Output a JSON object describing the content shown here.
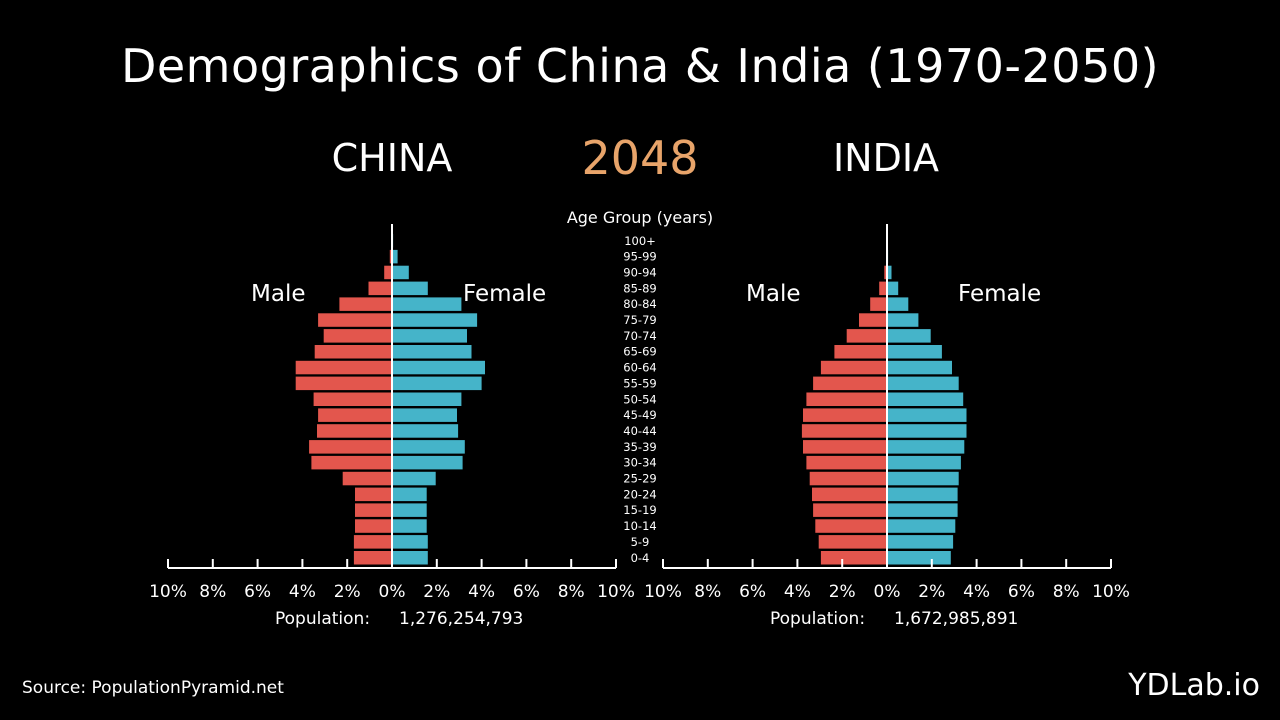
{
  "title": "Demographics of China & India (1970-2050)",
  "year": "2048",
  "age_axis_title": "Age Group (years)",
  "male_label": "Male",
  "female_label": "Female",
  "population_caption": "Population:",
  "source": "Source: PopulationPyramid.net",
  "brand": "YDLab.io",
  "colors": {
    "male": "#e3564d",
    "female": "#45b4c9",
    "year": "#e8a46a"
  },
  "chart_data": {
    "type": "bar",
    "orientation": "horizontal-pyramid",
    "age_groups": [
      "0-4",
      "5-9",
      "10-14",
      "15-19",
      "20-24",
      "25-29",
      "30-34",
      "35-39",
      "40-44",
      "45-49",
      "50-54",
      "55-59",
      "60-64",
      "65-69",
      "70-74",
      "75-79",
      "80-84",
      "85-89",
      "90-94",
      "95-99",
      "100+"
    ],
    "x_ticks": [
      "10%",
      "8%",
      "6%",
      "4%",
      "2%",
      "0%",
      "2%",
      "4%",
      "6%",
      "8%",
      "10%"
    ],
    "xlim": [
      -10,
      10
    ],
    "countries": [
      {
        "name": "CHINA",
        "population": "1,276,254,793",
        "male": [
          1.7,
          1.7,
          1.65,
          1.65,
          1.65,
          2.2,
          3.6,
          3.7,
          3.35,
          3.3,
          3.5,
          4.3,
          4.3,
          3.45,
          3.05,
          3.3,
          2.35,
          1.05,
          0.35,
          0.1,
          0.03
        ],
        "female": [
          1.6,
          1.6,
          1.55,
          1.55,
          1.55,
          1.95,
          3.15,
          3.25,
          2.95,
          2.9,
          3.1,
          4.0,
          4.15,
          3.55,
          3.35,
          3.8,
          3.1,
          1.6,
          0.75,
          0.25,
          0.05
        ]
      },
      {
        "name": "INDIA",
        "population": "1,672,985,891",
        "male": [
          2.95,
          3.05,
          3.2,
          3.3,
          3.35,
          3.45,
          3.6,
          3.75,
          3.8,
          3.75,
          3.6,
          3.3,
          2.95,
          2.35,
          1.8,
          1.25,
          0.75,
          0.35,
          0.12,
          0.03,
          0.01
        ],
        "female": [
          2.85,
          2.95,
          3.05,
          3.15,
          3.15,
          3.2,
          3.3,
          3.45,
          3.55,
          3.55,
          3.4,
          3.2,
          2.9,
          2.45,
          1.95,
          1.4,
          0.95,
          0.5,
          0.2,
          0.05,
          0.01
        ]
      }
    ]
  }
}
